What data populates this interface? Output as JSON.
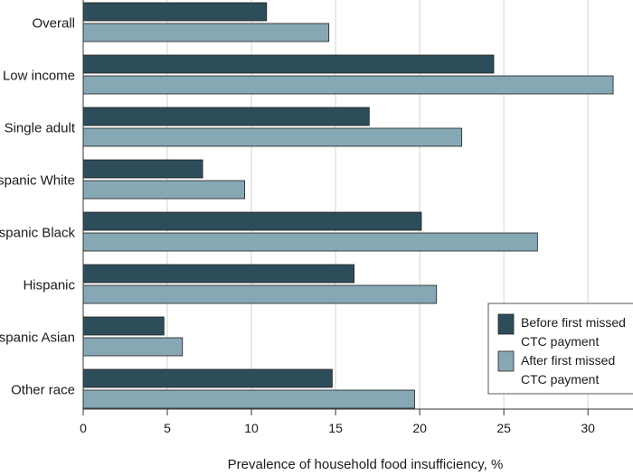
{
  "chart_data": {
    "type": "bar",
    "orientation": "horizontal",
    "categories": [
      "Overall",
      "Low income",
      "Single adult",
      "Non-Hispanic White",
      "Non-Hispanic Black",
      "Hispanic",
      "Non-Hispanic Asian",
      "Other race"
    ],
    "visible_category_labels": [
      "Overall",
      "Low income",
      "Single adult",
      "spanic White",
      "spanic Black",
      "Hispanic",
      "spanic Asian",
      "Other race"
    ],
    "series": [
      {
        "name": "Before first missed CTC payment",
        "legend_lines": [
          "Before first missed",
          "CTC payment"
        ],
        "color": "#2e4d5a",
        "values": [
          10.9,
          24.4,
          17.0,
          7.1,
          20.1,
          16.1,
          4.8,
          14.8
        ]
      },
      {
        "name": "After first missed CTC payment",
        "legend_lines": [
          "After first missed",
          "CTC payment"
        ],
        "color": "#86a8b5",
        "values": [
          14.6,
          31.5,
          22.5,
          9.6,
          27.0,
          21.0,
          5.9,
          19.7
        ]
      }
    ],
    "xlabel": "Prevalence of household food insufficiency, %",
    "ylabel": "",
    "xlim": [
      0,
      33
    ],
    "xticks": [
      0,
      5,
      10,
      15,
      20,
      25,
      30
    ],
    "grid": "vertical",
    "legend_position": "lower-right"
  }
}
